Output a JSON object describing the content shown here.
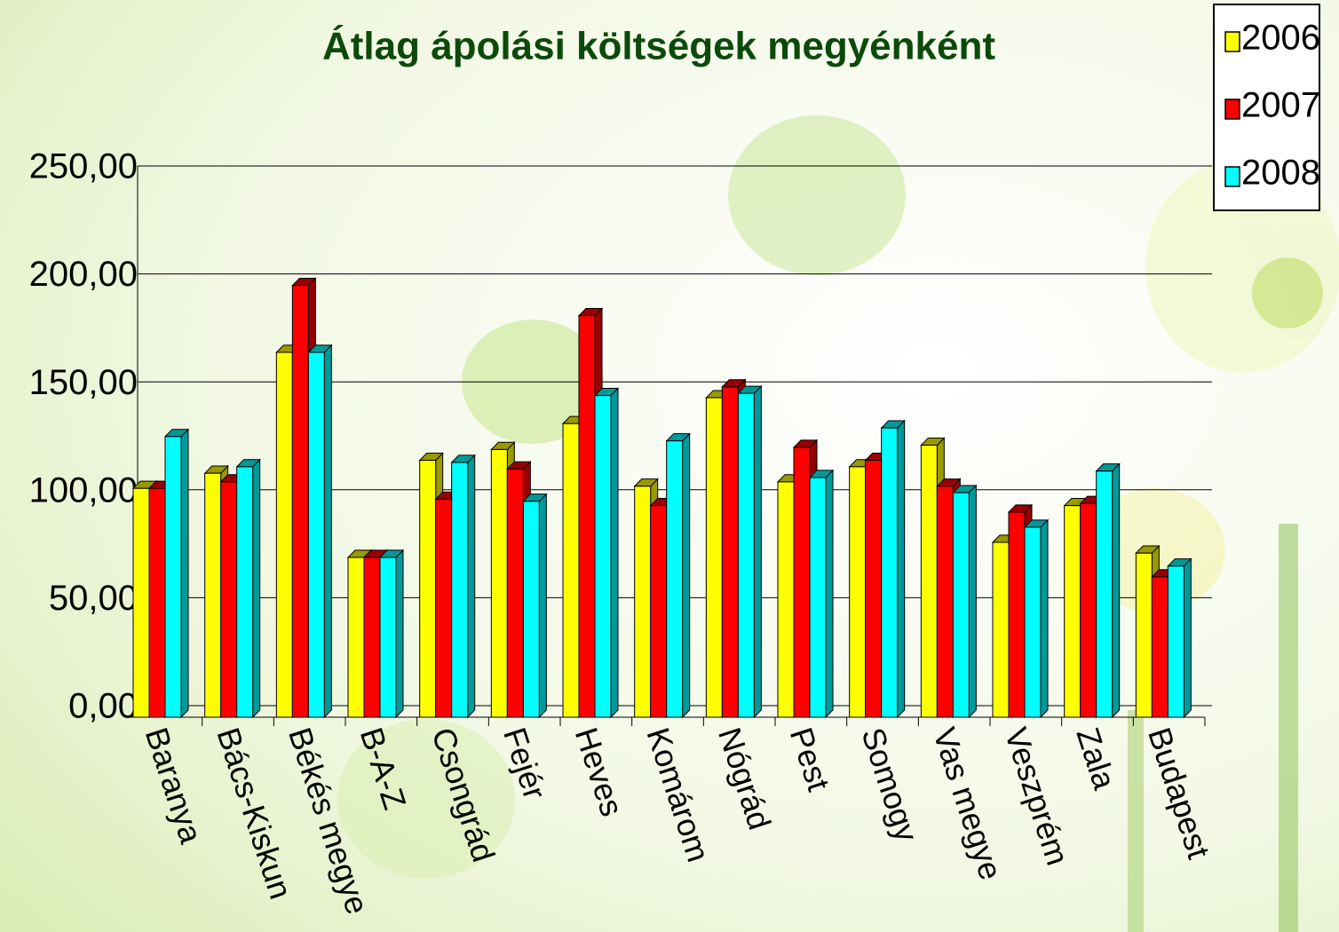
{
  "chart_data": {
    "type": "bar3d",
    "title": "Átlag ápolási költségek megyénként",
    "categories": [
      "Baranya",
      "Bács-Kiskun",
      "Békés megye",
      "B-A-Z",
      "Csongrád",
      "Fejér",
      "Heves",
      "Komárom",
      "Nógrád",
      "Pest",
      "Somogy",
      "Vas megye",
      "Veszprém",
      "Zala",
      "Budapest"
    ],
    "series": [
      {
        "name": "2006",
        "color": "#ffff00",
        "values": [
          106,
          113,
          169,
          74,
          119,
          124,
          136,
          107,
          148,
          109,
          116,
          126,
          81,
          98,
          76
        ]
      },
      {
        "name": "2007",
        "color": "#ff0000",
        "values": [
          106,
          109,
          200,
          74,
          101,
          115,
          186,
          98,
          153,
          125,
          119,
          107,
          95,
          99,
          65
        ]
      },
      {
        "name": "2008",
        "color": "#00ffff",
        "values": [
          130,
          116,
          169,
          74,
          118,
          100,
          149,
          128,
          150,
          111,
          134,
          104,
          88,
          114,
          70
        ]
      }
    ],
    "ylim": [
      0,
      250
    ],
    "yticks": [
      {
        "value": 0,
        "label": "0,00"
      },
      {
        "value": 50,
        "label": "50,00"
      },
      {
        "value": 100,
        "label": "100,00"
      },
      {
        "value": 150,
        "label": "150,00"
      },
      {
        "value": 200,
        "label": "200,00"
      },
      {
        "value": 250,
        "label": "250,00"
      }
    ],
    "grid": true,
    "legend": "top-right"
  }
}
